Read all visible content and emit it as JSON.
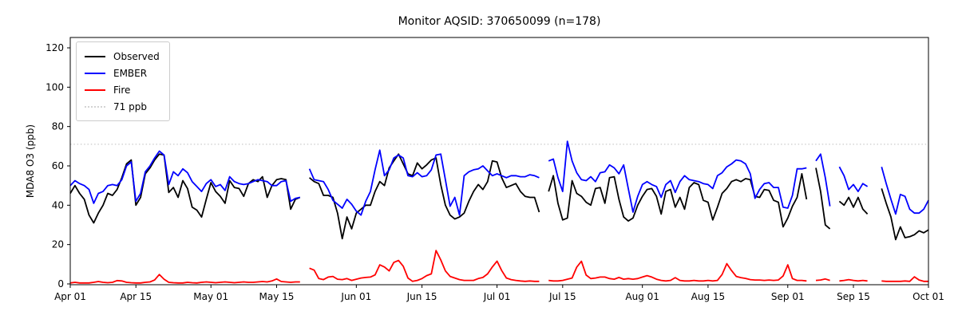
{
  "chart_data": {
    "type": "line",
    "title": "Monitor AQSID: 370650099 (n=178)",
    "xlabel": "",
    "ylabel": "MDA8 O3 (ppb)",
    "n_label": "n=178",
    "grid": false,
    "legend_position": "upper left",
    "ylim": [
      0,
      125
    ],
    "y_ticks": [
      0,
      20,
      40,
      60,
      80,
      100,
      120
    ],
    "x_tick_labels": [
      "Apr 01",
      "Apr 15",
      "May 01",
      "May 15",
      "Jun 01",
      "Jun 15",
      "Jul 01",
      "Jul 15",
      "Aug 01",
      "Aug 15",
      "Sep 01",
      "Sep 15",
      "Oct 01"
    ],
    "x_tick_days": [
      0,
      14,
      30,
      44,
      61,
      75,
      91,
      105,
      122,
      136,
      153,
      167,
      183
    ],
    "x_months": [
      [
        "Apr",
        30
      ],
      [
        "May",
        31
      ],
      [
        "Jun",
        30
      ],
      [
        "Jul",
        31
      ],
      [
        "Aug",
        31
      ],
      [
        "Sep",
        30
      ],
      [
        "Oct",
        1
      ]
    ],
    "reference_line": {
      "label": "71 ppb",
      "value": 71,
      "color": "#d3d3d3",
      "style": "dotted"
    },
    "legend": [
      {
        "label": "Observed",
        "color": "#000000",
        "style": "solid"
      },
      {
        "label": "EMBER",
        "color": "#0000ff",
        "style": "solid"
      },
      {
        "label": "Fire",
        "color": "#ff0000",
        "style": "solid"
      },
      {
        "label": "71 ppb",
        "color": "#d3d3d3",
        "style": "dotted"
      }
    ],
    "series": [
      {
        "name": "Observed",
        "color": "#000000",
        "values": [
          46,
          50,
          46,
          43,
          35,
          31,
          36,
          40,
          46,
          45,
          48,
          54,
          61,
          63,
          40,
          44,
          56,
          59,
          63,
          66,
          65.5,
          46.5,
          49,
          44,
          52.5,
          48.5,
          39,
          37.5,
          34,
          43,
          51.5,
          47,
          44.5,
          41,
          52.5,
          49,
          48.5,
          44.5,
          51,
          53,
          52,
          54.5,
          44,
          50,
          53,
          53.5,
          53,
          38,
          43,
          44,
          null,
          54,
          52,
          51,
          45,
          45,
          44,
          36,
          23,
          34,
          28,
          36,
          38,
          40,
          40,
          47,
          52,
          50,
          59,
          62.5,
          66,
          61,
          56,
          55,
          61.5,
          58.5,
          60.5,
          63,
          64,
          50.5,
          40,
          35,
          33,
          34,
          36,
          42,
          47,
          50.5,
          48,
          52,
          62.5,
          62,
          54,
          49,
          50,
          51,
          47,
          44.5,
          44,
          44,
          36.5,
          null,
          47,
          55,
          41,
          32.5,
          33.5,
          52.5,
          46,
          44.5,
          41.5,
          40,
          48.5,
          49,
          41,
          54,
          54.5,
          43,
          34,
          32,
          33.5,
          40,
          44.5,
          48,
          48.5,
          44.5,
          35.5,
          47,
          48,
          39,
          44,
          38,
          49,
          51.5,
          50.5,
          42.5,
          41.5,
          32.5,
          39,
          46,
          48.5,
          52,
          53,
          52,
          53.5,
          53,
          44.5,
          44,
          48,
          47.5,
          42.5,
          41.5,
          29,
          33.5,
          39.5,
          44,
          56,
          43,
          null,
          59,
          47,
          30,
          28,
          null,
          42,
          40,
          44,
          39,
          44,
          38,
          35.5,
          null,
          null,
          48.5,
          41,
          34,
          22.5,
          29,
          23.5,
          24,
          25,
          27,
          26,
          27.5
        ]
      },
      {
        "name": "EMBER",
        "color": "#0000ff",
        "values": [
          50,
          52.5,
          51,
          50,
          48,
          41,
          46,
          47,
          50,
          50.5,
          50,
          53,
          60,
          62,
          42,
          46,
          57,
          60,
          64,
          67.5,
          65.5,
          50.5,
          57,
          55,
          58.5,
          56.5,
          52,
          49.5,
          47,
          51,
          53,
          49.5,
          50.5,
          47.5,
          54.5,
          52,
          51,
          50.5,
          51,
          52,
          53,
          52.5,
          52,
          50,
          50,
          52,
          52.5,
          42,
          43.5,
          44,
          null,
          58.5,
          53,
          52.5,
          52,
          48,
          42.5,
          40.5,
          38.5,
          43,
          40.5,
          37,
          35,
          42,
          47,
          58,
          68,
          55,
          58,
          64,
          65.5,
          64,
          55,
          54.5,
          56.5,
          54.5,
          55,
          58,
          65.5,
          66,
          53,
          39.5,
          44,
          35,
          55,
          57,
          58,
          58.5,
          60,
          57.5,
          55,
          56,
          55,
          54,
          55,
          55,
          54.5,
          54.5,
          55.5,
          55,
          54,
          null,
          62.5,
          63.5,
          54,
          47,
          72.5,
          62.5,
          56.5,
          53,
          52.5,
          54.5,
          52,
          56.5,
          57,
          60.5,
          59,
          56,
          60.5,
          48.5,
          36.5,
          44.5,
          50.5,
          52,
          50.5,
          49.5,
          44,
          50.5,
          52.5,
          46.5,
          52,
          55,
          53,
          52.5,
          52,
          51,
          50.5,
          48.5,
          55,
          56.5,
          59.5,
          61,
          63,
          62.5,
          61,
          56,
          43.5,
          48,
          51,
          51.5,
          49,
          49,
          39,
          38.5,
          45,
          58.5,
          58.5,
          59,
          null,
          62.5,
          66,
          54,
          39.5,
          null,
          59.5,
          55,
          48,
          50.5,
          47,
          51,
          49.5,
          null,
          null,
          59.5,
          51,
          43,
          35.5,
          45.5,
          44.5,
          38,
          36,
          36,
          38,
          42.5
        ]
      },
      {
        "name": "Fire",
        "color": "#ff0000",
        "values": [
          0.5,
          0.8,
          0.5,
          0.5,
          0.5,
          0.8,
          1.2,
          0.8,
          0.6,
          0.8,
          1.7,
          1.5,
          0.8,
          0.6,
          0.5,
          0.5,
          0.8,
          1,
          2,
          4.8,
          2.4,
          0.8,
          0.6,
          0.5,
          0.5,
          0.8,
          0.6,
          0.5,
          0.8,
          1,
          0.8,
          0.6,
          0.8,
          1,
          0.8,
          0.6,
          0.8,
          1,
          0.8,
          0.8,
          1,
          1.2,
          1,
          1.5,
          2.5,
          1.2,
          1,
          0.8,
          1,
          1,
          null,
          8,
          7,
          2.7,
          2.2,
          3.5,
          3.8,
          2.4,
          2.2,
          2.7,
          1.8,
          2.4,
          3,
          3.3,
          3.5,
          4.6,
          9.7,
          8.6,
          6.6,
          10.9,
          11.9,
          9,
          3,
          1.3,
          1.8,
          2.7,
          4.2,
          5.1,
          17,
          12.2,
          6.6,
          3.8,
          3,
          2.2,
          1.8,
          1.8,
          1.8,
          2.7,
          3.3,
          5.1,
          8.6,
          11.6,
          6.8,
          3,
          2.2,
          1.8,
          1.5,
          1.3,
          1.5,
          1.3,
          1.3,
          null,
          1.8,
          1.5,
          1.5,
          1.8,
          2.4,
          3,
          8.5,
          11.5,
          4.5,
          2.7,
          3,
          3.5,
          3.5,
          2.7,
          2.4,
          3.3,
          2.4,
          2.7,
          2.4,
          2.7,
          3.5,
          4.2,
          3.5,
          2.4,
          1.8,
          1.5,
          1.8,
          3.2,
          1.8,
          1.5,
          1.5,
          1.8,
          1.5,
          1.5,
          1.8,
          1.5,
          1.8,
          4.8,
          10.3,
          6.8,
          3.8,
          3.2,
          2.8,
          2.2,
          2,
          2,
          1.8,
          2,
          1.8,
          2,
          4,
          9.7,
          2.7,
          1.8,
          1.8,
          1.5,
          null,
          1.8,
          2,
          2.5,
          1.8,
          null,
          1.5,
          1.8,
          2.2,
          1.8,
          1.5,
          1.8,
          1.5,
          null,
          null,
          1.5,
          1.3,
          1.3,
          1.3,
          1.3,
          1.5,
          1.3,
          3.6,
          2,
          1.3,
          1.3
        ]
      }
    ]
  }
}
